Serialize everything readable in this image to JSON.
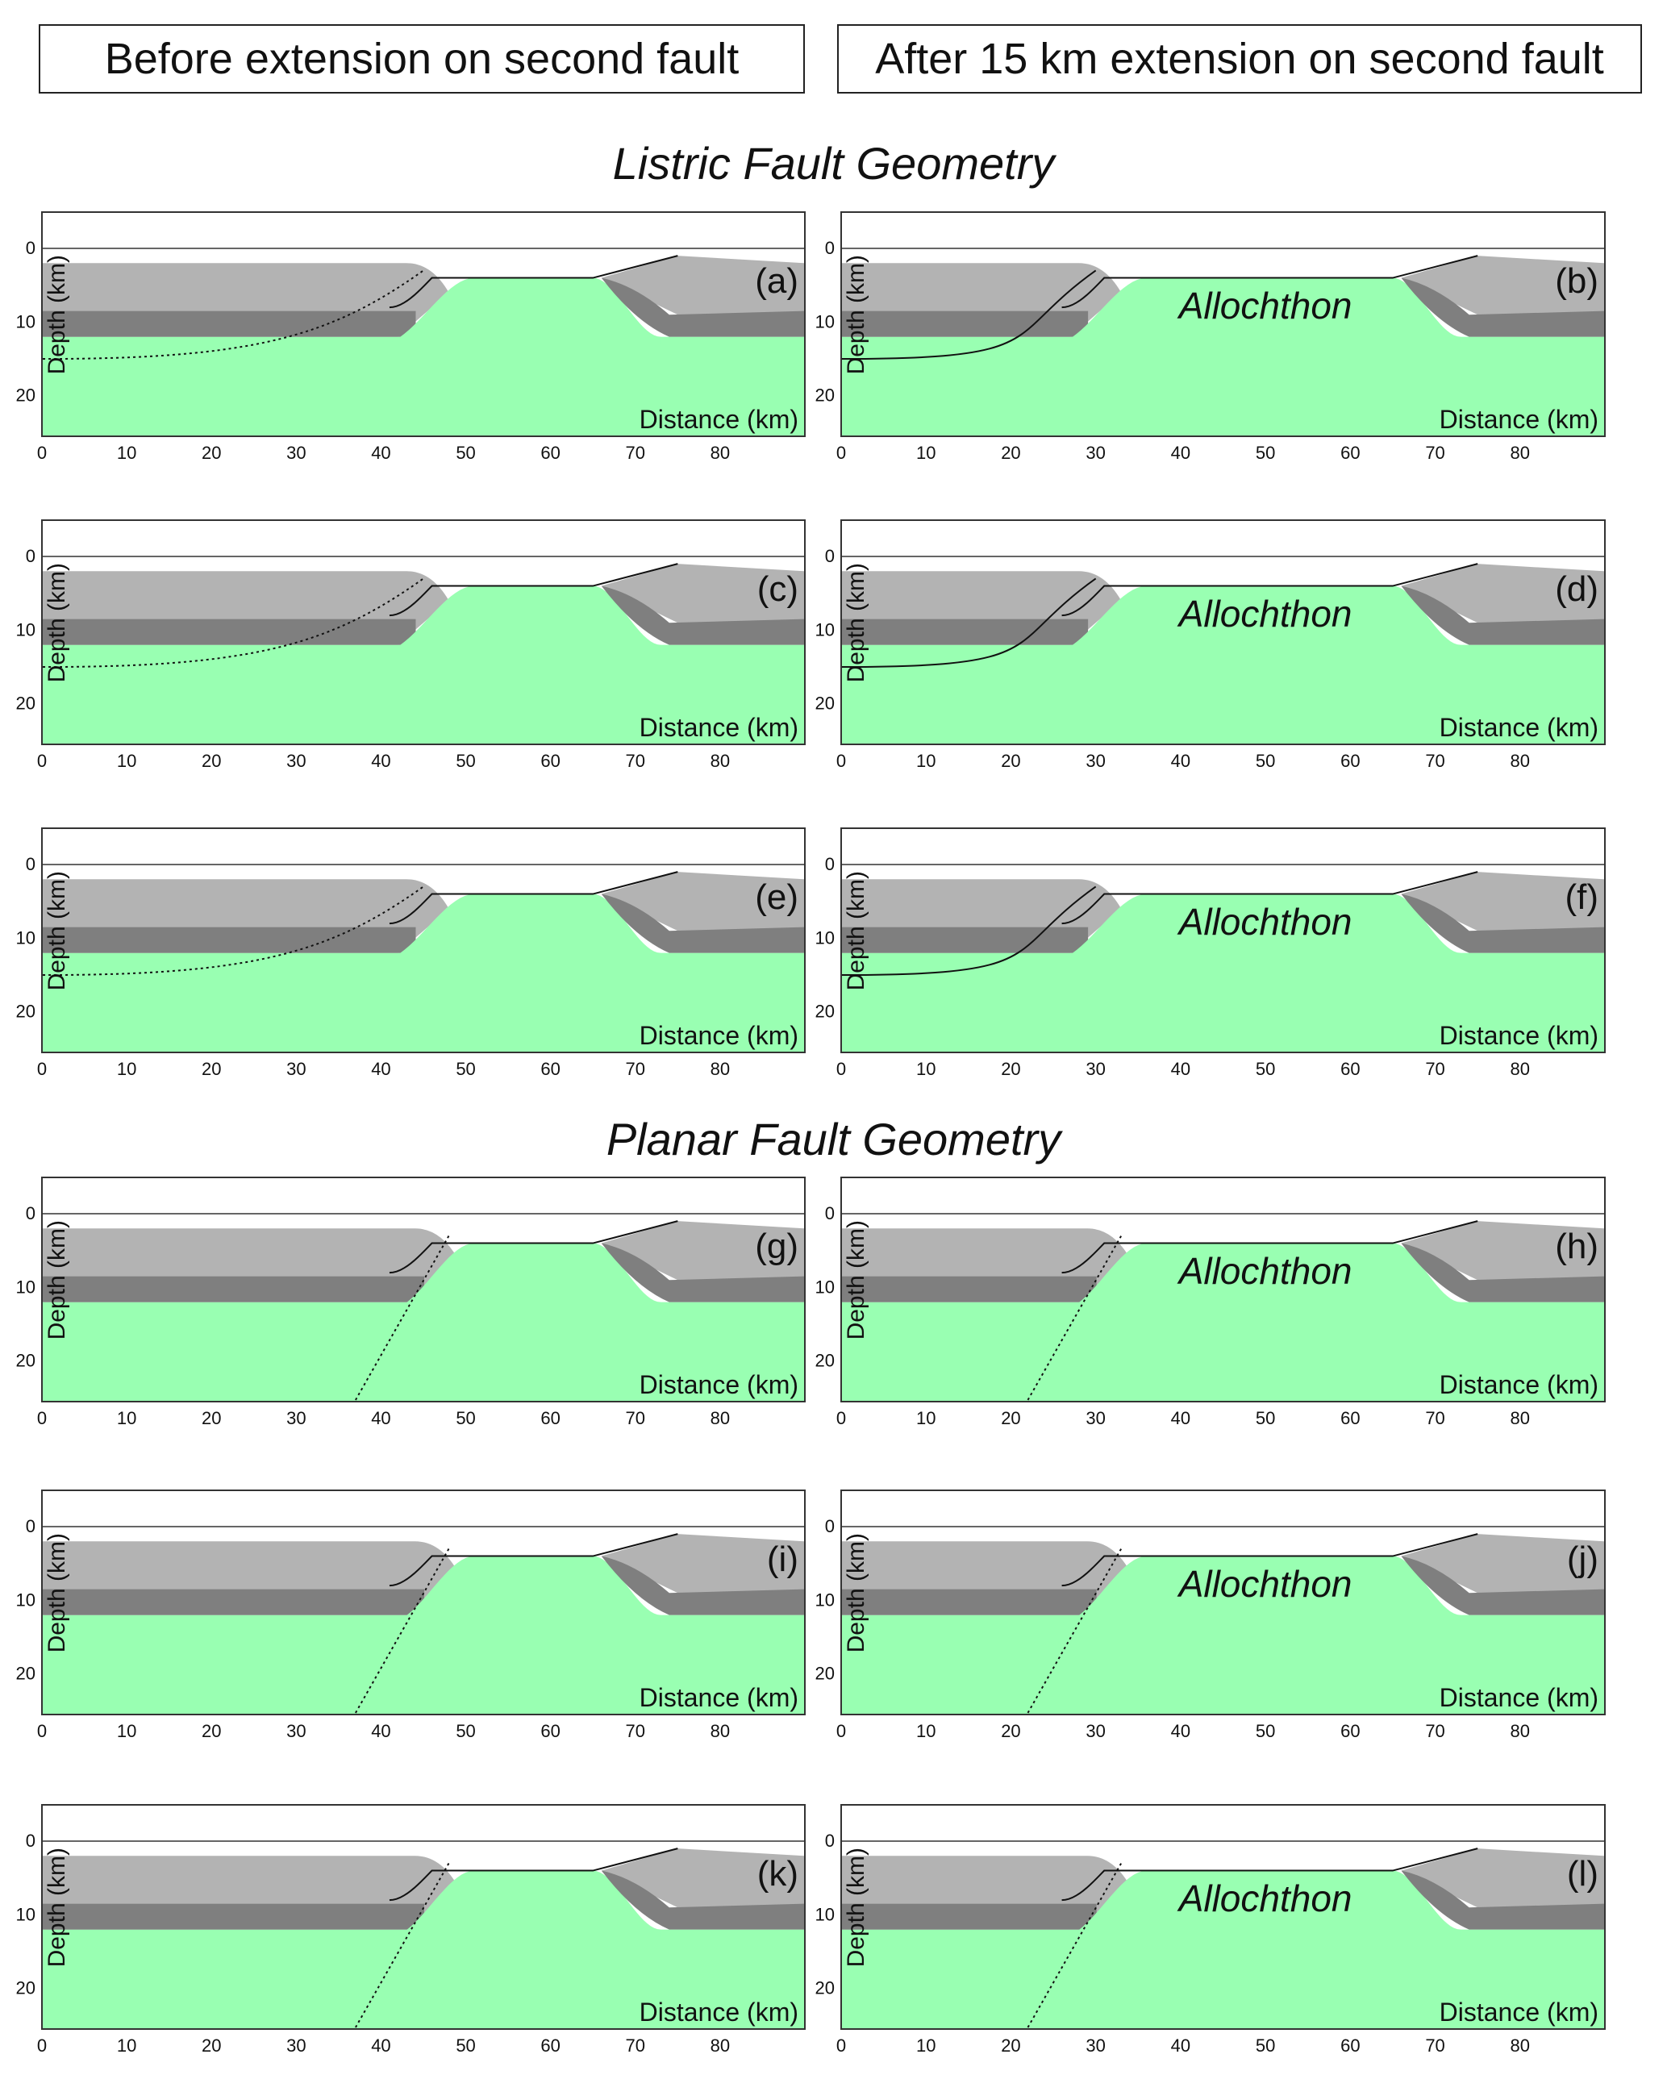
{
  "headers": {
    "left": "Before extension on second fault",
    "right": "After 15 km extension on second fault"
  },
  "sections": {
    "listric": "Listric Fault Geometry",
    "planar": "Planar Fault Geometry"
  },
  "axes": {
    "ylabel": "Depth (km)",
    "xlabel": "Distance (km)",
    "x_ticks": [
      "0",
      "10",
      "20",
      "30",
      "40",
      "50",
      "60",
      "70",
      "80"
    ],
    "y_ticks": [
      "0",
      "10",
      "20"
    ]
  },
  "allochthon_label": "Allochthon",
  "panels": [
    {
      "label": "(a)",
      "fault": "listric",
      "stage": "before",
      "variant": 1
    },
    {
      "label": "(b)",
      "fault": "listric",
      "stage": "after",
      "variant": 1
    },
    {
      "label": "(c)",
      "fault": "listric",
      "stage": "before",
      "variant": 2
    },
    {
      "label": "(d)",
      "fault": "listric",
      "stage": "after",
      "variant": 2
    },
    {
      "label": "(e)",
      "fault": "listric",
      "stage": "before",
      "variant": 3
    },
    {
      "label": "(f)",
      "fault": "listric",
      "stage": "after",
      "variant": 3
    },
    {
      "label": "(g)",
      "fault": "planar",
      "stage": "before",
      "variant": 1
    },
    {
      "label": "(h)",
      "fault": "planar",
      "stage": "after",
      "variant": 1
    },
    {
      "label": "(i)",
      "fault": "planar",
      "stage": "before",
      "variant": 2
    },
    {
      "label": "(j)",
      "fault": "planar",
      "stage": "after",
      "variant": 2
    },
    {
      "label": "(k)",
      "fault": "planar",
      "stage": "before",
      "variant": 3
    },
    {
      "label": "(l)",
      "fault": "planar",
      "stage": "after",
      "variant": 3
    }
  ],
  "colors": {
    "sediment_light": "#b3b3b3",
    "sediment_dark": "#7f7f7f",
    "basement": "#99ffb2",
    "line": "#111111"
  }
}
